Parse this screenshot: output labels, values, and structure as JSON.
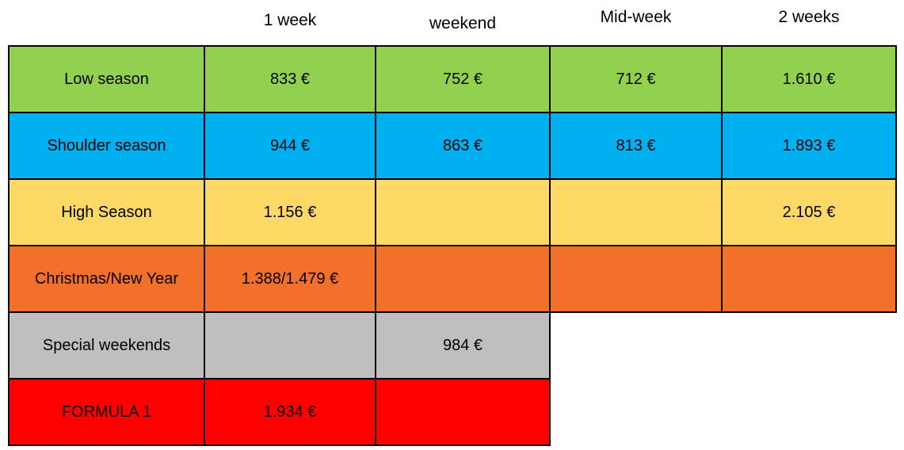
{
  "chart_data": {
    "type": "table",
    "columns": [
      "",
      "1 week",
      "weekend",
      "Mid-week",
      "2 weeks"
    ],
    "rows": [
      {
        "label": "Low season",
        "color": "#92D050",
        "values": [
          "833 €",
          "752 €",
          "712 €",
          "1.610 €"
        ]
      },
      {
        "label": "Shoulder season",
        "color": "#00B0F0",
        "values": [
          "944 €",
          "863 €",
          "813 €",
          "1.893 €"
        ]
      },
      {
        "label": "High Season",
        "color": "#FFD966",
        "values": [
          "1.156 €",
          "",
          "",
          "2.105 €"
        ]
      },
      {
        "label": "Christmas/New Year",
        "color": "#F2702A",
        "values": [
          "1.388/1.479 €",
          "",
          "",
          ""
        ]
      },
      {
        "label": "Special weekends",
        "color": "#BFBFBF",
        "values": [
          "",
          "984 €"
        ],
        "span_columns": 3
      },
      {
        "label": "FORMULA 1",
        "color": "#FF0000",
        "values": [
          "1.934 €",
          ""
        ],
        "span_columns": 3
      }
    ],
    "currency_symbol": "€",
    "layout": {
      "grid": "borders 2px black, header row without borders",
      "legend_position": "none"
    }
  },
  "colors": {
    "low_season": "#92D050",
    "shoulder_season": "#00B0F0",
    "high_season": "#FFD966",
    "christmas_new_year": "#F2702A",
    "special_weekends": "#BFBFBF",
    "formula_1": "#FF0000",
    "border": "#000000",
    "text": "#000000",
    "background": "#FFFFFF"
  }
}
